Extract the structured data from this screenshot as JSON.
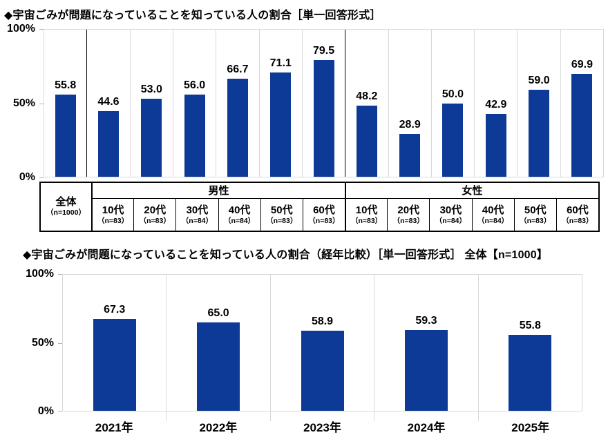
{
  "colors": {
    "bar": "#0d3a96",
    "grid": "#d9d9d9",
    "tick": "#b3b3b3",
    "ink": "#000000"
  },
  "chart_data": [
    {
      "type": "bar",
      "title": "◆宇宙ごみが問題になっていることを知っている人の割合［単一回答形式］",
      "unit": "%",
      "ylim": [
        0,
        100
      ],
      "ytick_labels": [
        "100%",
        "50%",
        "0%"
      ],
      "grid": "vertical-column-separators",
      "legend": "none",
      "bar_color": "#0d3a96",
      "groups": [
        {
          "label": null,
          "categories": [
            "全体"
          ],
          "n_labels": [
            "（n=1000）"
          ],
          "values": [
            55.8
          ]
        },
        {
          "label": "男性",
          "categories": [
            "10代",
            "20代",
            "30代",
            "40代",
            "50代",
            "60代"
          ],
          "n_labels": [
            "（n=83）",
            "（n=83）",
            "（n=84）",
            "（n=84）",
            "（n=83）",
            "（n=83）"
          ],
          "values": [
            44.6,
            53.0,
            56.0,
            66.7,
            71.1,
            79.5
          ]
        },
        {
          "label": "女性",
          "categories": [
            "10代",
            "20代",
            "30代",
            "40代",
            "50代",
            "60代"
          ],
          "n_labels": [
            "（n=83）",
            "（n=83）",
            "（n=84）",
            "（n=84）",
            "（n=83）",
            "（n=83）"
          ],
          "values": [
            48.2,
            28.9,
            50.0,
            42.9,
            59.0,
            69.9
          ]
        }
      ]
    },
    {
      "type": "bar",
      "title": "◆宇宙ごみが問題になっていることを知っている人の割合（経年比較）［単一回答形式］ 全体【n=1000】",
      "unit": "%",
      "ylim": [
        0,
        100
      ],
      "ytick_labels": [
        "100%",
        "50%",
        "0%"
      ],
      "grid": "vertical-column-separators",
      "legend": "none",
      "bar_color": "#0d3a96",
      "categories": [
        "2021年",
        "2022年",
        "2023年",
        "2024年",
        "2025年"
      ],
      "values": [
        67.3,
        65.0,
        58.9,
        59.3,
        55.8
      ]
    }
  ]
}
